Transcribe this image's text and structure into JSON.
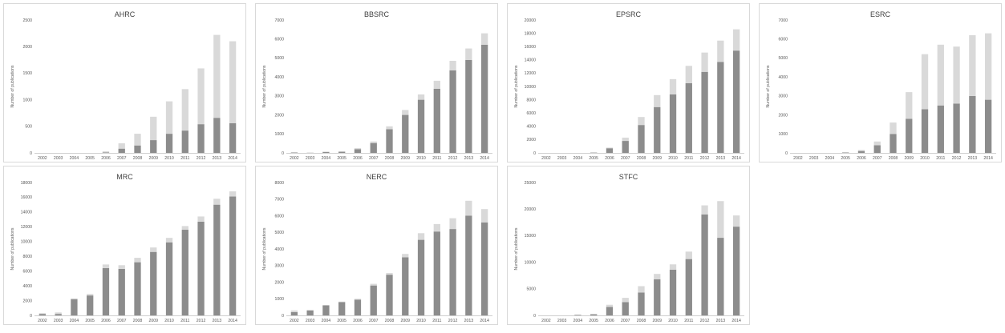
{
  "colors": {
    "lower": "#8c8c8c",
    "upper": "#d9d9d9",
    "axis": "#bfbfbf"
  },
  "chart_data": [
    {
      "type": "bar",
      "stacked": true,
      "title": "AHRC",
      "ylabel": "Number of publications",
      "categories": [
        "2002",
        "2003",
        "2004",
        "2005",
        "2006",
        "2007",
        "2008",
        "2009",
        "2010",
        "2011",
        "2012",
        "2013",
        "2014"
      ],
      "ylim": [
        0,
        2500
      ],
      "yticks": [
        0,
        500,
        1000,
        1500,
        2000,
        2500
      ],
      "series": [
        {
          "values": [
            0,
            0,
            0,
            0,
            10,
            80,
            140,
            240,
            360,
            420,
            540,
            660,
            560
          ]
        },
        {
          "values": [
            0,
            0,
            0,
            0,
            20,
            100,
            220,
            440,
            610,
            780,
            1050,
            1560,
            1540
          ]
        }
      ]
    },
    {
      "type": "bar",
      "stacked": true,
      "title": "BBSRC",
      "ylabel": "Number of publications",
      "categories": [
        "2002",
        "2003",
        "2004",
        "2005",
        "2006",
        "2007",
        "2008",
        "2009",
        "2010",
        "2011",
        "2012",
        "2013",
        "2014"
      ],
      "ylim": [
        0,
        7000
      ],
      "yticks": [
        0,
        1000,
        2000,
        3000,
        4000,
        5000,
        6000,
        7000
      ],
      "series": [
        {
          "values": [
            20,
            10,
            50,
            60,
            200,
            520,
            1250,
            2000,
            2800,
            3380,
            4350,
            4900,
            5700
          ]
        },
        {
          "values": [
            10,
            10,
            20,
            20,
            50,
            80,
            150,
            260,
            280,
            420,
            500,
            600,
            600
          ]
        }
      ]
    },
    {
      "type": "bar",
      "stacked": true,
      "title": "EPSRC",
      "ylabel": "Number of publications",
      "categories": [
        "2002",
        "2003",
        "2004",
        "2005",
        "2006",
        "2007",
        "2008",
        "2009",
        "2010",
        "2011",
        "2012",
        "2013",
        "2014"
      ],
      "ylim": [
        0,
        20000
      ],
      "yticks": [
        0,
        2000,
        4000,
        6000,
        8000,
        10000,
        12000,
        14000,
        16000,
        18000,
        20000
      ],
      "series": [
        {
          "values": [
            0,
            0,
            0,
            50,
            700,
            1800,
            4200,
            6900,
            8800,
            10500,
            12200,
            13700,
            15400
          ]
        },
        {
          "values": [
            0,
            0,
            0,
            20,
            100,
            500,
            1200,
            1800,
            2300,
            2600,
            2900,
            3200,
            3200
          ]
        }
      ]
    },
    {
      "type": "bar",
      "stacked": true,
      "title": "ESRC",
      "ylabel": "Number of publications",
      "categories": [
        "2002",
        "2003",
        "2004",
        "2005",
        "2006",
        "2007",
        "2008",
        "2009",
        "2010",
        "2011",
        "2012",
        "2013",
        "2014"
      ],
      "ylim": [
        0,
        7000
      ],
      "yticks": [
        0,
        1000,
        2000,
        3000,
        4000,
        5000,
        6000,
        7000
      ],
      "series": [
        {
          "values": [
            0,
            0,
            0,
            20,
            100,
            400,
            1000,
            1800,
            2300,
            2500,
            2600,
            3000,
            2800
          ]
        },
        {
          "values": [
            0,
            0,
            0,
            10,
            50,
            200,
            600,
            1400,
            2900,
            3200,
            3000,
            3200,
            3500
          ]
        }
      ]
    },
    {
      "type": "bar",
      "stacked": true,
      "title": "MRC",
      "ylabel": "Number of publications",
      "categories": [
        "2002",
        "2003",
        "2004",
        "2005",
        "2006",
        "2007",
        "2008",
        "2009",
        "2010",
        "2011",
        "2012",
        "2013",
        "2014"
      ],
      "ylim": [
        0,
        18000
      ],
      "yticks": [
        0,
        2000,
        4000,
        6000,
        8000,
        10000,
        12000,
        14000,
        16000,
        18000
      ],
      "series": [
        {
          "values": [
            200,
            200,
            2200,
            2700,
            6400,
            6300,
            7200,
            8600,
            9900,
            11600,
            12700,
            15000,
            16100
          ]
        },
        {
          "values": [
            100,
            200,
            100,
            200,
            500,
            500,
            600,
            600,
            600,
            500,
            700,
            800,
            700
          ]
        }
      ]
    },
    {
      "type": "bar",
      "stacked": true,
      "title": "NERC",
      "ylabel": "Number of publications",
      "categories": [
        "2002",
        "2003",
        "2004",
        "2005",
        "2006",
        "2007",
        "2008",
        "2009",
        "2010",
        "2011",
        "2012",
        "2013",
        "2014"
      ],
      "ylim": [
        0,
        8000
      ],
      "yticks": [
        0,
        1000,
        2000,
        3000,
        4000,
        5000,
        6000,
        7000,
        8000
      ],
      "series": [
        {
          "values": [
            200,
            300,
            600,
            800,
            950,
            1800,
            2450,
            3500,
            4550,
            5050,
            5200,
            6000,
            5600
          ]
        },
        {
          "values": [
            100,
            30,
            30,
            30,
            50,
            100,
            100,
            200,
            400,
            450,
            650,
            900,
            800
          ]
        }
      ]
    },
    {
      "type": "bar",
      "stacked": true,
      "title": "STFC",
      "ylabel": "Number of publications",
      "categories": [
        "2002",
        "2003",
        "2004",
        "2005",
        "2006",
        "2007",
        "2008",
        "2009",
        "2010",
        "2011",
        "2012",
        "2013",
        "2014"
      ],
      "ylim": [
        0,
        25000
      ],
      "yticks": [
        0,
        5000,
        10000,
        15000,
        20000,
        25000
      ],
      "series": [
        {
          "values": [
            0,
            0,
            100,
            200,
            1600,
            2500,
            4300,
            6800,
            8600,
            10600,
            19000,
            14600,
            16700
          ]
        },
        {
          "values": [
            0,
            0,
            50,
            100,
            400,
            800,
            1200,
            1000,
            1000,
            1400,
            1700,
            6900,
            2100
          ]
        }
      ]
    }
  ]
}
